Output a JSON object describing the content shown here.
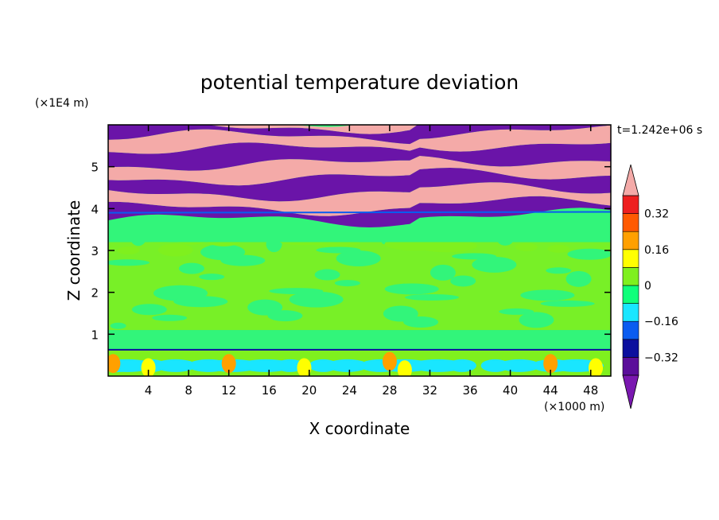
{
  "chart_data": {
    "type": "heatmap",
    "title": "potential temperature deviation",
    "xlabel": "X coordinate",
    "ylabel": "Z coordinate",
    "x_scale_note": "(×1000 m)",
    "y_scale_note": "(×1E4 m)",
    "time_label": "t=1.242e+06 s",
    "xlim": [
      0,
      50
    ],
    "ylim": [
      0,
      6
    ],
    "x_ticks": [
      4,
      8,
      12,
      16,
      20,
      24,
      28,
      32,
      36,
      40,
      44,
      48
    ],
    "y_ticks": [
      1,
      2,
      3,
      4,
      5
    ],
    "x_tick_labels": [
      "4",
      "8",
      "12",
      "16",
      "20",
      "24",
      "28",
      "32",
      "36",
      "40",
      "44",
      "48"
    ],
    "y_tick_labels": [
      "1",
      "2",
      "3",
      "4",
      "5"
    ],
    "colorbar": {
      "levels": [
        -0.4,
        -0.32,
        -0.24,
        -0.16,
        -0.08,
        0,
        0.08,
        0.16,
        0.24,
        0.32,
        0.4
      ],
      "labels": [
        "0.32",
        "0.16",
        "0",
        "−0.16",
        "−0.32"
      ],
      "label_values": [
        0.32,
        0.16,
        0,
        -0.16,
        -0.32
      ],
      "colors_low_to_high": [
        "#5b0e9a",
        "#0c0f9e",
        "#0a5cf0",
        "#19e6ff",
        "#0fff7a",
        "#7ff01e",
        "#ffff00",
        "#ffa000",
        "#ff5a00",
        "#ee1f1f"
      ],
      "under_color": "#7a18b0",
      "over_color": "#f4aaa8"
    },
    "regions": {
      "upper_band_colors": [
        "#f4aaa8",
        "#6a14a8"
      ],
      "mid_color": "#32f57a",
      "lower_colors": [
        "#7ff01e",
        "#32f57a"
      ],
      "bottom_layer_colors": [
        "#19e6ff",
        "#ffa000",
        "#ffff00"
      ]
    }
  }
}
